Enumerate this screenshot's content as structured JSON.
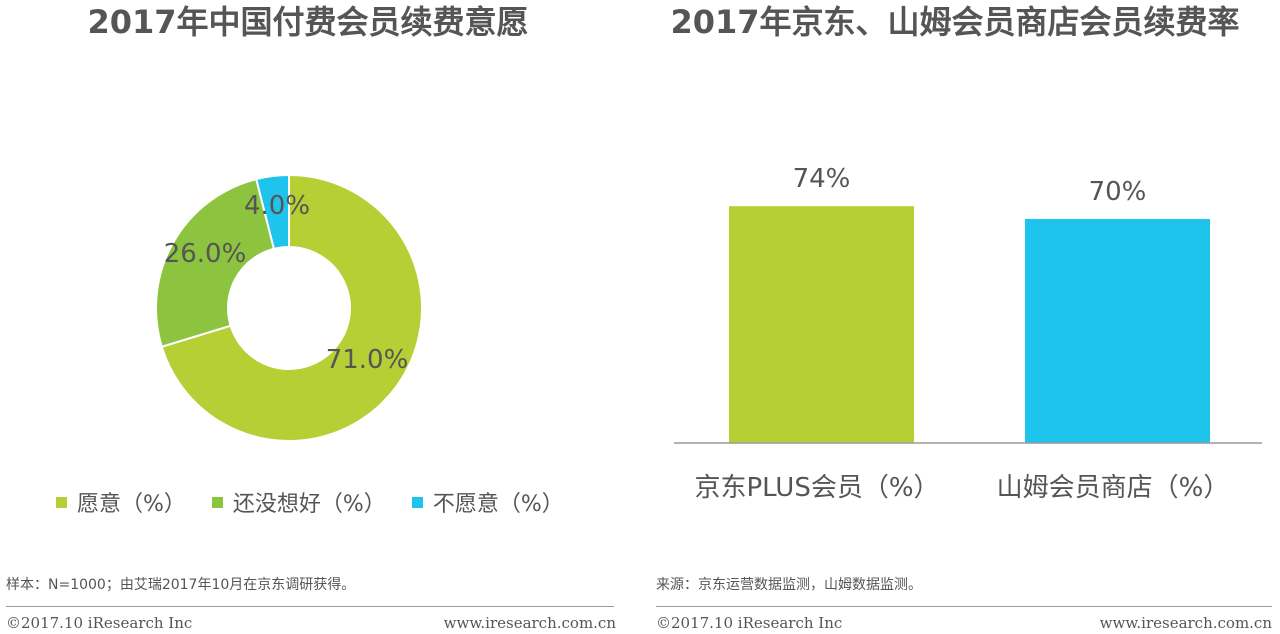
{
  "chart_data": [
    {
      "type": "pie",
      "title": "2017年中国付费会员续费意愿",
      "slices": [
        {
          "name": "愿意（%）",
          "value": 71.0,
          "label": "71.0%",
          "color": "#b5cf35"
        },
        {
          "name": "还没想好（%）",
          "value": 26.0,
          "label": "26.0%",
          "color": "#8cc43f"
        },
        {
          "name": "不愿意（%）",
          "value": 4.0,
          "label": "4.0%",
          "color": "#1ec4ec"
        }
      ]
    },
    {
      "type": "bar",
      "title": "2017年京东、山姆会员商店会员续费率",
      "categories": [
        "京东PLUS会员（%）",
        "山姆会员商店（%）"
      ],
      "values": [
        74,
        70
      ],
      "value_labels": [
        "74%",
        "70%"
      ],
      "colors": [
        "#b5cf35",
        "#1ec4ec"
      ]
    }
  ],
  "notes": {
    "left": "样本：N=1000；由艾瑞2017年10月在京东调研获得。",
    "right": "来源：京东运营数据监测，山姆数据监测。"
  },
  "footer": {
    "left_copyright": "©2017.10 iResearch Inc",
    "left_url": "www.iresearch.com.cn",
    "right_copyright": "©2017.10 iResearch Inc",
    "right_url": "www.iresearch.com.cn"
  }
}
